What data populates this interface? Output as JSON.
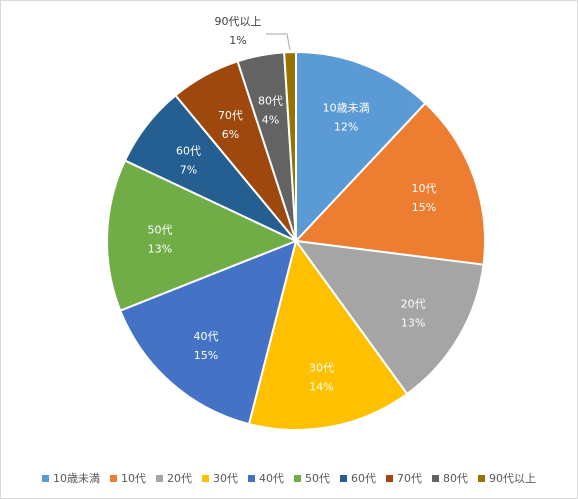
{
  "chart_data": {
    "type": "pie",
    "title": "",
    "start_angle_deg": 0,
    "direction": "clockwise",
    "legend_position": "bottom",
    "slices": [
      {
        "label": "10歳未満",
        "value": 12,
        "display": "12%",
        "color": "#5b9bd5"
      },
      {
        "label": "10代",
        "value": 15,
        "display": "15%",
        "color": "#ed7d31"
      },
      {
        "label": "20代",
        "value": 13,
        "display": "13%",
        "color": "#a5a5a5"
      },
      {
        "label": "30代",
        "value": 14,
        "display": "14%",
        "color": "#ffc000"
      },
      {
        "label": "40代",
        "value": 15,
        "display": "15%",
        "color": "#4472c4"
      },
      {
        "label": "50代",
        "value": 13,
        "display": "13%",
        "color": "#70ad47"
      },
      {
        "label": "60代",
        "value": 7,
        "display": "7%",
        "color": "#255e91"
      },
      {
        "label": "70代",
        "value": 6,
        "display": "6%",
        "color": "#9e480e"
      },
      {
        "label": "80代",
        "value": 4,
        "display": "4%",
        "color": "#636363"
      },
      {
        "label": "90代以上",
        "value": 1,
        "display": "1%",
        "color": "#997300"
      }
    ]
  }
}
